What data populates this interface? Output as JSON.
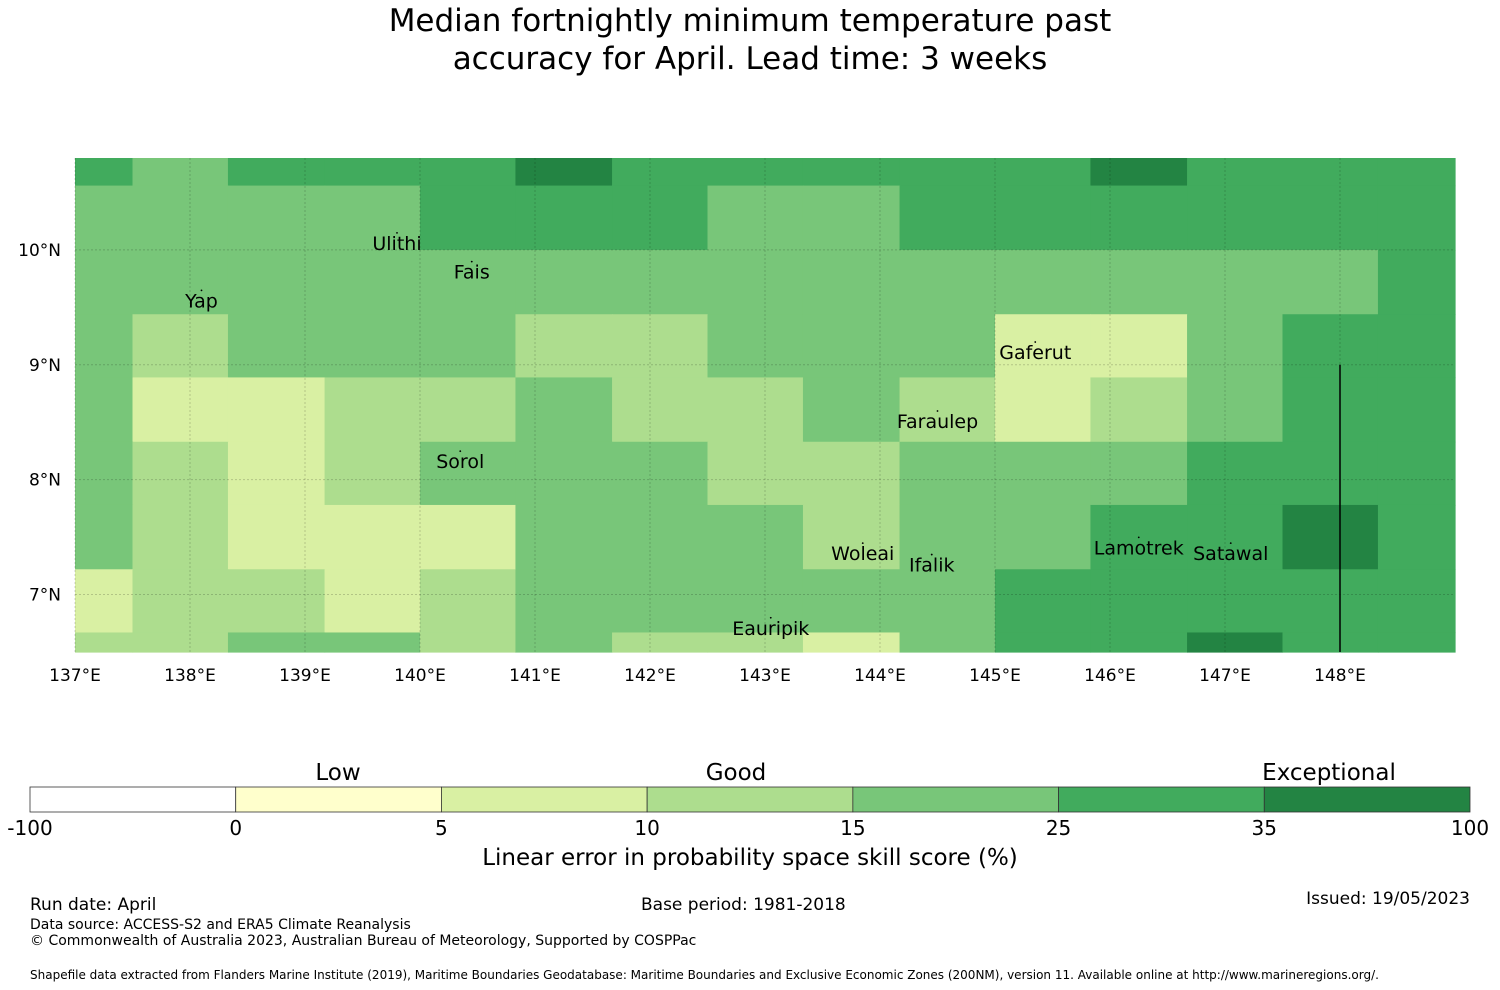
{
  "title": {
    "line1": "Median fortnightly minimum temperature past",
    "line2": "accuracy for April. Lead time: 3 weeks"
  },
  "map": {
    "lon_range": [
      137.0,
      149.0
    ],
    "lat_range": [
      6.5,
      10.8
    ],
    "x_ticks": [
      {
        "lon": 137,
        "label": "137°E"
      },
      {
        "lon": 138,
        "label": "138°E"
      },
      {
        "lon": 139,
        "label": "139°E"
      },
      {
        "lon": 140,
        "label": "140°E"
      },
      {
        "lon": 141,
        "label": "141°E"
      },
      {
        "lon": 142,
        "label": "142°E"
      },
      {
        "lon": 143,
        "label": "143°E"
      },
      {
        "lon": 144,
        "label": "144°E"
      },
      {
        "lon": 145,
        "label": "145°E"
      },
      {
        "lon": 146,
        "label": "146°E"
      },
      {
        "lon": 147,
        "label": "147°E"
      },
      {
        "lon": 148,
        "label": "148°E"
      }
    ],
    "y_ticks": [
      {
        "lat": 10,
        "label": "10°N"
      },
      {
        "lat": 9,
        "label": "9°N"
      },
      {
        "lat": 8,
        "label": "8°N"
      },
      {
        "lat": 7,
        "label": "7°N"
      }
    ],
    "col_edges": [
      137.0,
      137.5,
      138.33,
      139.17,
      140.0,
      140.83,
      141.67,
      142.5,
      143.33,
      144.17,
      145.0,
      145.83,
      146.67,
      147.5,
      148.33,
      149.0
    ],
    "row_edges": [
      10.8,
      10.56,
      10.0,
      9.44,
      8.89,
      8.33,
      7.78,
      7.22,
      6.67,
      6.5
    ],
    "grid_levels": [
      [
        5,
        4,
        5,
        5,
        5,
        6,
        5,
        5,
        5,
        5,
        5,
        6,
        5,
        5,
        5
      ],
      [
        4,
        4,
        4,
        4,
        5,
        5,
        5,
        4,
        4,
        5,
        5,
        5,
        5,
        5,
        5
      ],
      [
        4,
        4,
        4,
        4,
        4,
        4,
        4,
        4,
        4,
        4,
        4,
        4,
        4,
        4,
        5
      ],
      [
        4,
        3,
        4,
        4,
        4,
        3,
        3,
        4,
        4,
        4,
        2,
        2,
        4,
        5,
        5
      ],
      [
        4,
        2,
        2,
        3,
        3,
        4,
        3,
        3,
        4,
        3,
        2,
        3,
        4,
        5,
        5
      ],
      [
        4,
        3,
        2,
        3,
        4,
        4,
        4,
        3,
        3,
        4,
        4,
        4,
        5,
        5,
        5
      ],
      [
        4,
        3,
        2,
        2,
        2,
        4,
        4,
        4,
        3,
        4,
        4,
        5,
        5,
        6,
        5
      ],
      [
        2,
        3,
        3,
        2,
        3,
        4,
        4,
        4,
        4,
        4,
        5,
        5,
        5,
        5,
        5
      ],
      [
        3,
        3,
        4,
        4,
        3,
        4,
        3,
        3,
        2,
        4,
        5,
        5,
        6,
        5,
        5
      ]
    ],
    "places": [
      {
        "name": "Ulithi",
        "lon": 139.8,
        "lat": 10.0
      },
      {
        "name": "Fais",
        "lon": 140.45,
        "lat": 9.75
      },
      {
        "name": "Yap",
        "lon": 138.1,
        "lat": 9.5
      },
      {
        "name": "Gaferut",
        "lon": 145.35,
        "lat": 9.05
      },
      {
        "name": "Faraulep",
        "lon": 144.5,
        "lat": 8.45
      },
      {
        "name": "Sorol",
        "lon": 140.35,
        "lat": 8.1
      },
      {
        "name": "Woleai",
        "lon": 143.85,
        "lat": 7.3
      },
      {
        "name": "Ifalik",
        "lon": 144.45,
        "lat": 7.2
      },
      {
        "name": "Lamotrek",
        "lon": 146.25,
        "lat": 7.35
      },
      {
        "name": "Satawal",
        "lon": 147.05,
        "lat": 7.3
      },
      {
        "name": "Eauripik",
        "lon": 143.05,
        "lat": 6.65
      }
    ],
    "boundary_lon": 148.0,
    "boundary_lat_range": [
      6.5,
      9.0
    ]
  },
  "colorbar": {
    "bounds": [
      -100,
      0,
      5,
      10,
      15,
      25,
      35,
      100
    ],
    "tick_labels": [
      "-100",
      "0",
      "5",
      "10",
      "15",
      "25",
      "35",
      "100"
    ],
    "colors": [
      "#ffffff",
      "#ffffcc",
      "#d9f0a3",
      "#addd8e",
      "#78c679",
      "#41ab5d",
      "#238443"
    ],
    "categories": [
      "Low",
      "Good",
      "Exceptional"
    ],
    "label": "Linear error in probability space skill score (%)"
  },
  "footer": {
    "run_date": "Run date: April",
    "base_period": "Base period: 1981-2018",
    "issued": "Issued: 19/05/2023",
    "data_source": "Data source: ACCESS-S2 and ERA5 Climate Reanalysis",
    "copyright": "© Commonwealth of Australia 2023, Australian Bureau of Meteorology, Supported by COSPPac",
    "shapefile": "Shapefile data extracted from Flanders Marine Institute (2019), Maritime Boundaries Geodatabase: Maritime Boundaries and Exclusive Economic Zones (200NM), version 11. Available online at http://www.marineregions.org/."
  }
}
